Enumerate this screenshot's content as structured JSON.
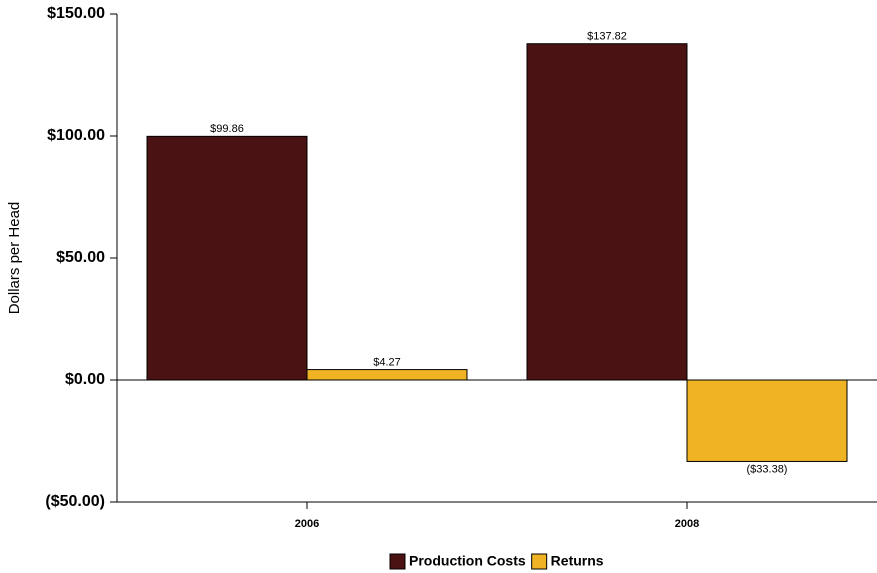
{
  "chart_data": {
    "type": "bar",
    "y_label": "Dollars per Head",
    "categories": [
      "2006",
      "2008"
    ],
    "series": [
      {
        "name": "Production Costs",
        "color": "#4a1212",
        "values": [
          99.86,
          137.82
        ],
        "value_labels": [
          "$99.86",
          "$137.82"
        ]
      },
      {
        "name": "Returns",
        "color": "#f0b323",
        "values": [
          4.27,
          -33.38
        ],
        "value_labels": [
          "$4.27",
          "($33.38)"
        ]
      }
    ],
    "ylim": [
      -50,
      150
    ],
    "yticks": [
      {
        "value": -50,
        "label": "($50.00)"
      },
      {
        "value": 0,
        "label": "$0.00"
      },
      {
        "value": 50,
        "label": "$50.00"
      },
      {
        "value": 100,
        "label": "$100.00"
      },
      {
        "value": 150,
        "label": "$150.00"
      }
    ],
    "legend": "bottom"
  }
}
